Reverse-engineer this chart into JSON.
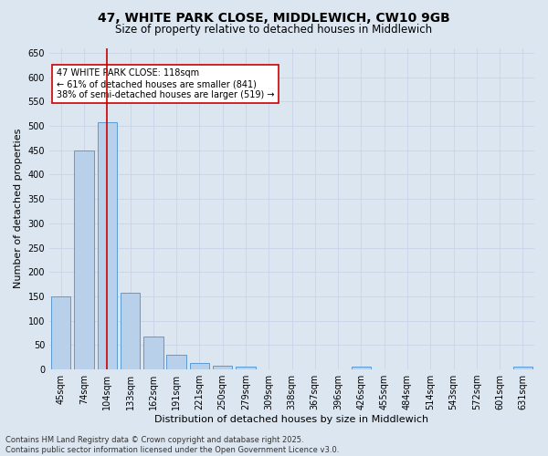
{
  "title_line1": "47, WHITE PARK CLOSE, MIDDLEWICH, CW10 9GB",
  "title_line2": "Size of property relative to detached houses in Middlewich",
  "xlabel": "Distribution of detached houses by size in Middlewich",
  "ylabel": "Number of detached properties",
  "footer_line1": "Contains HM Land Registry data © Crown copyright and database right 2025.",
  "footer_line2": "Contains public sector information licensed under the Open Government Licence v3.0.",
  "annotation_line1": "47 WHITE PARK CLOSE: 118sqm",
  "annotation_line2": "← 61% of detached houses are smaller (841)",
  "annotation_line3": "38% of semi-detached houses are larger (519) →",
  "categories": [
    "45sqm",
    "74sqm",
    "104sqm",
    "133sqm",
    "162sqm",
    "191sqm",
    "221sqm",
    "250sqm",
    "279sqm",
    "309sqm",
    "338sqm",
    "367sqm",
    "396sqm",
    "426sqm",
    "455sqm",
    "484sqm",
    "514sqm",
    "543sqm",
    "572sqm",
    "601sqm",
    "631sqm"
  ],
  "values": [
    150,
    450,
    507,
    158,
    67,
    30,
    13,
    8,
    5,
    0,
    0,
    0,
    0,
    5,
    0,
    0,
    0,
    0,
    0,
    0,
    5
  ],
  "bar_color": "#b8d0ea",
  "bar_edge_color": "#5b9bd5",
  "vline_color": "#cc0000",
  "vline_position": 2,
  "ylim_max": 660,
  "yticks": [
    0,
    50,
    100,
    150,
    200,
    250,
    300,
    350,
    400,
    450,
    500,
    550,
    600,
    650
  ],
  "grid_color": "#c8d4e8",
  "bg_color": "#dce6f0",
  "annotation_box_color": "#cc0000",
  "annotation_box_fill": "#ffffff",
  "title1_fontsize": 10,
  "title2_fontsize": 8.5,
  "axis_label_fontsize": 8,
  "tick_fontsize": 7,
  "annotation_fontsize": 7,
  "footer_fontsize": 6
}
